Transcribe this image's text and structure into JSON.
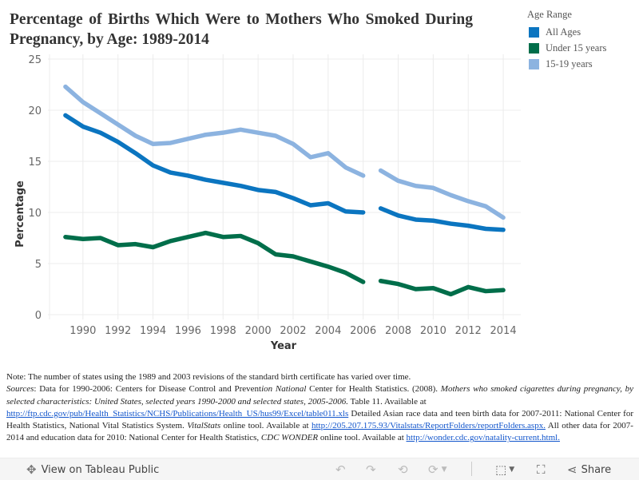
{
  "title": "Percentage of Births Which Were to Mothers Who Smoked During Pregnancy, by Age: 1989-2014",
  "legend": {
    "title": "Age Range",
    "items": [
      {
        "label": "All Ages",
        "color": "#0b75c0"
      },
      {
        "label": "Under 15 years",
        "color": "#006e4a"
      },
      {
        "label": "15-19 years",
        "color": "#8cb3e0"
      }
    ]
  },
  "chart_data": {
    "type": "line",
    "title": "Percentage of Births Which Were to Mothers Who Smoked During Pregnancy, by Age: 1989-2014",
    "xlabel": "Year",
    "ylabel": "Percentage",
    "xlim": [
      1988,
      2015
    ],
    "ylim": [
      0,
      25
    ],
    "xticks": [
      "1990",
      "1992",
      "1994",
      "1996",
      "1998",
      "2000",
      "2002",
      "2004",
      "2006",
      "2008",
      "2010",
      "2012",
      "2014"
    ],
    "yticks": [
      "0",
      "5",
      "10",
      "15",
      "20",
      "25"
    ],
    "grid": true,
    "legend_position": "top-right",
    "x": [
      1989,
      1990,
      1991,
      1992,
      1993,
      1994,
      1995,
      1996,
      1997,
      1998,
      1999,
      2000,
      2001,
      2002,
      2003,
      2004,
      2005,
      2006,
      2007,
      2008,
      2009,
      2010,
      2011,
      2012,
      2013,
      2014
    ],
    "series": [
      {
        "name": "All Ages",
        "color": "#0b75c0",
        "values": [
          19.5,
          18.4,
          17.8,
          16.9,
          15.8,
          14.6,
          13.9,
          13.6,
          13.2,
          12.9,
          12.6,
          12.2,
          12.0,
          11.4,
          10.7,
          10.9,
          10.1,
          10.0,
          10.4,
          9.7,
          9.3,
          9.2,
          8.9,
          8.7,
          8.4,
          8.3
        ]
      },
      {
        "name": "Under 15 years",
        "color": "#006e4a",
        "values": [
          7.6,
          7.4,
          7.5,
          6.8,
          6.9,
          6.6,
          7.2,
          7.6,
          8.0,
          7.6,
          7.7,
          7.0,
          5.9,
          5.7,
          5.2,
          4.7,
          4.1,
          3.2,
          3.3,
          3.0,
          2.5,
          2.6,
          2.0,
          2.7,
          2.3,
          2.4
        ]
      },
      {
        "name": "15-19 years",
        "color": "#8cb3e0",
        "values": [
          22.3,
          20.8,
          19.7,
          18.6,
          17.5,
          16.7,
          16.8,
          17.2,
          17.6,
          17.8,
          18.1,
          17.8,
          17.5,
          16.7,
          15.4,
          15.8,
          14.4,
          13.6,
          14.1,
          13.1,
          12.6,
          12.4,
          11.7,
          11.1,
          10.6,
          9.5
        ]
      }
    ],
    "gap_between": [
      2006,
      2007
    ]
  },
  "notes": {
    "line1": "Note: The number of states using the 1989 and 2003 revisions of the standard birth certificate has varied over time.",
    "sources_label": "Sources",
    "s1": ": Data for 1990-2006: Centers for Disease Control and Prevent",
    "s1_italic": "ion National",
    "s2": " Center for Health Statistics. (2008). ",
    "s2_italic": "Mothers who smoked cigarettes during pregnancy, by selected characteristics: United States, selected years 1990-2000 and selected states, 2005-2006.",
    "s3": " Table 11. Available at ",
    "link1": "http://ftp.cdc.gov/pub/Health_Statistics/NCHS/Publications/Health_US/hus99/Excel/table011.xls",
    "s4": " Detailed Asian race data and teen birth data for 2007-2011: National Center for Health Statistics, National Vital Statistics System.  ",
    "s4_italic": "VitalStats",
    "s5": " online tool. Available at ",
    "link2": "http://205.207.175.93/Vitalstats/ReportFolders/reportFolders.aspx.",
    "s6": " All other data for 2007-2014 and education data for 2010: National Center for Health Statistics, ",
    "s6_italic": "CDC WONDER",
    "s7": " online tool. Available at ",
    "link3": "http://wonder.cdc.gov/natality-current.html."
  },
  "footer": {
    "view_label": "View on Tableau Public",
    "share_label": "Share"
  }
}
